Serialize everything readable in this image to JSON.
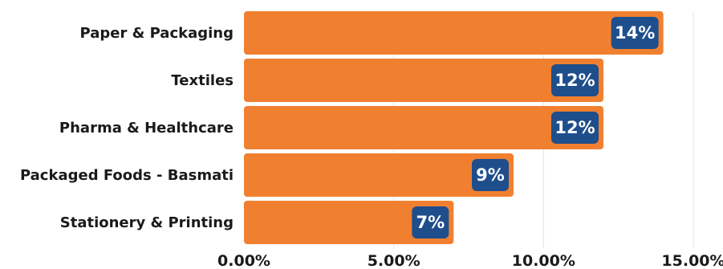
{
  "chart_data": {
    "type": "bar",
    "orientation": "horizontal",
    "categories": [
      "Paper & Packaging",
      "Textiles",
      "Pharma & Healthcare",
      "Packaged Foods - Basmati",
      "Stationery & Printing"
    ],
    "values": [
      14,
      12,
      12,
      9,
      7
    ],
    "data_labels": [
      "14%",
      "12%",
      "12%",
      "9%",
      "7%"
    ],
    "x_ticks": [
      "0.00%",
      "5.00%",
      "10.00%",
      "15.00%"
    ],
    "xlim": [
      0,
      15
    ],
    "grid": true,
    "colors": {
      "bar": "#F08030",
      "label_bg": "#1F4E8C",
      "label_text": "#FFFFFF",
      "grid": "#E3E3E3",
      "text": "#1A1A1A"
    }
  }
}
